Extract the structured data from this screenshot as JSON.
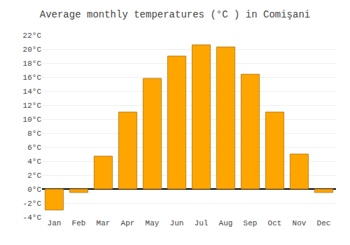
{
  "chart_data": {
    "type": "bar",
    "title": "Average monthly temperatures (°C ) in Comişani",
    "categories": [
      "Jan",
      "Feb",
      "Mar",
      "Apr",
      "May",
      "Jun",
      "Jul",
      "Aug",
      "Sep",
      "Oct",
      "Nov",
      "Dec"
    ],
    "values": [
      -3.0,
      -0.5,
      4.7,
      11.0,
      15.8,
      19.0,
      20.6,
      20.3,
      16.4,
      11.0,
      5.0,
      -0.5
    ],
    "color": "#FFA500",
    "ylim": [
      -4,
      22
    ],
    "yticks": [
      {
        "value": -4,
        "label": "-4°C"
      },
      {
        "value": -2,
        "label": "-2°C"
      },
      {
        "value": 0,
        "label": "0°C"
      },
      {
        "value": 2,
        "label": "2°C"
      },
      {
        "value": 4,
        "label": "4°C"
      },
      {
        "value": 6,
        "label": "6°C"
      },
      {
        "value": 8,
        "label": "8°C"
      },
      {
        "value": 10,
        "label": "10°C"
      },
      {
        "value": 12,
        "label": "12°C"
      },
      {
        "value": 14,
        "label": "14°C"
      },
      {
        "value": 16,
        "label": "16°C"
      },
      {
        "value": 18,
        "label": "18°C"
      },
      {
        "value": 20,
        "label": "20°C"
      },
      {
        "value": 22,
        "label": "22°C"
      }
    ],
    "grid": true
  }
}
